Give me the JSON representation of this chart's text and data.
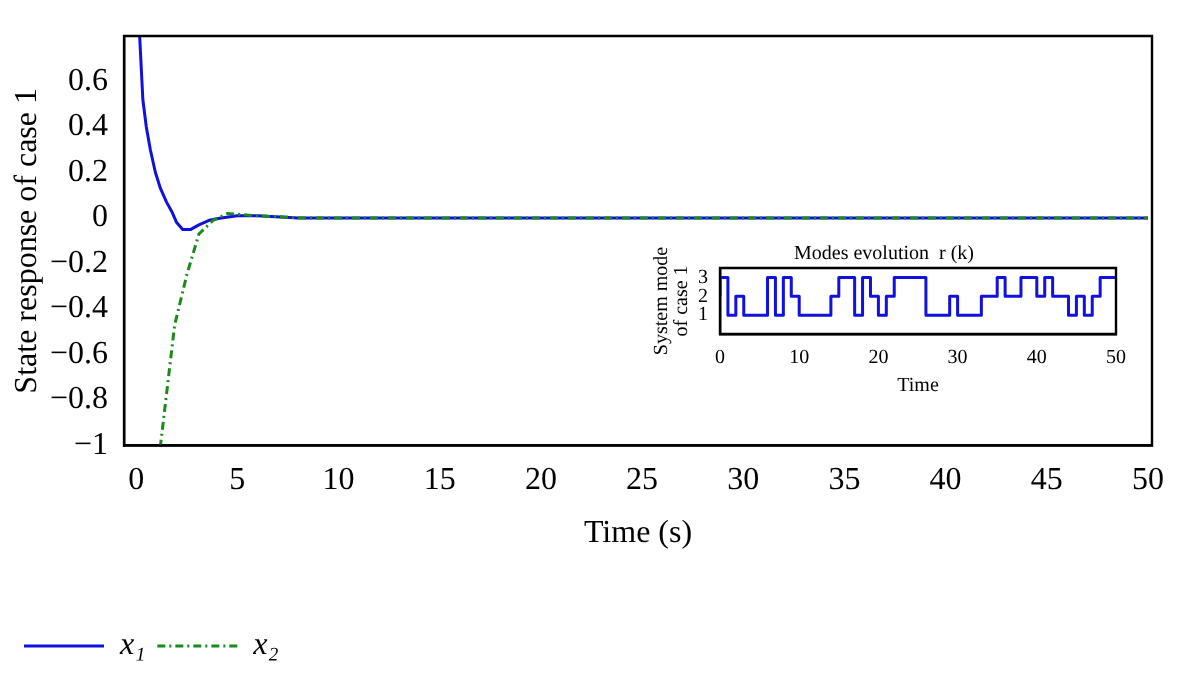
{
  "chart_data": [
    {
      "type": "line",
      "xlabel": "Time (s)",
      "ylabel": "State response of case 1",
      "xlim": [
        -0.6,
        50.2
      ],
      "ylim": [
        -1,
        0.8
      ],
      "xticks": [
        0,
        5,
        10,
        15,
        20,
        25,
        30,
        35,
        40,
        45,
        50
      ],
      "yticks": [
        {
          "value": -1,
          "label": "−1"
        },
        {
          "value": -0.8,
          "label": "−0.8"
        },
        {
          "value": -0.6,
          "label": "−0.6"
        },
        {
          "value": -0.4,
          "label": "−0.4"
        },
        {
          "value": -0.2,
          "label": "−0.2"
        },
        0,
        0.2,
        0.4,
        0.6
      ],
      "legend": "bottom left",
      "grid": false,
      "series": [
        {
          "name": "x₁",
          "color": "#1010e0",
          "line_style": "solid",
          "x": [
            0.17,
            0.33,
            0.5,
            0.7,
            0.95,
            1.2,
            1.5,
            1.75,
            2,
            2.3,
            2.7,
            3.1,
            3.6,
            4.2,
            5,
            6,
            8,
            50
          ],
          "values": [
            0.8,
            0.52,
            0.4,
            0.3,
            0.2,
            0.13,
            0.07,
            0.03,
            -0.02,
            -0.05,
            -0.05,
            -0.03,
            -0.01,
            0,
            0.01,
            0.01,
            0,
            0
          ]
        },
        {
          "name": "x₂",
          "color": "#1a8a1a",
          "line_style": "dashed",
          "x": [
            1.2,
            1.9,
            2.5,
            3.1,
            3.8,
            4.5,
            5.9,
            8.4,
            50
          ],
          "values": [
            -1,
            -0.47,
            -0.25,
            -0.07,
            -0.01,
            0.02,
            0.01,
            0,
            0
          ]
        }
      ]
    },
    {
      "type": "step",
      "title": "Modes evolution  r (k)",
      "xlabel": "Time",
      "ylabel": "System mode\nof case 1",
      "xlim": [
        0,
        50
      ],
      "ylim": [
        0,
        3.5
      ],
      "xticks": [
        0,
        10,
        20,
        30,
        40,
        50
      ],
      "yticks": [
        1,
        2,
        3
      ],
      "grid": false,
      "legend": false,
      "series": [
        {
          "color": "#1010e0",
          "x": [
            0,
            1,
            2,
            3,
            6,
            7,
            8,
            9,
            10,
            14,
            15,
            17,
            18,
            19,
            20,
            21,
            22,
            26,
            29,
            30,
            33,
            35,
            36,
            38,
            40,
            41,
            42,
            44,
            45,
            46,
            47,
            48,
            49,
            50
          ],
          "values": [
            2,
            3,
            1,
            2,
            1,
            3,
            1,
            3,
            2,
            1,
            2,
            3,
            1,
            3,
            2,
            1,
            2,
            3,
            1,
            2,
            1,
            2,
            3,
            2,
            3,
            2,
            3,
            2,
            1,
            2,
            1,
            2,
            3,
            3
          ]
        }
      ]
    }
  ]
}
